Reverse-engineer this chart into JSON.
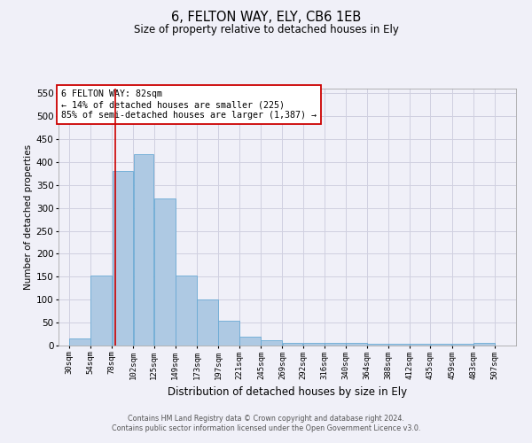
{
  "title": "6, FELTON WAY, ELY, CB6 1EB",
  "subtitle": "Size of property relative to detached houses in Ely",
  "xlabel": "Distribution of detached houses by size in Ely",
  "ylabel": "Number of detached properties",
  "footer_line1": "Contains HM Land Registry data © Crown copyright and database right 2024.",
  "footer_line2": "Contains public sector information licensed under the Open Government Licence v3.0.",
  "annotation_line1": "6 FELTON WAY: 82sqm",
  "annotation_line2": "← 14% of detached houses are smaller (225)",
  "annotation_line3": "85% of semi-detached houses are larger (1,387) →",
  "property_size": 82,
  "bar_left_edges": [
    30,
    54,
    78,
    102,
    125,
    149,
    173,
    197,
    221,
    245,
    269,
    292,
    316,
    340,
    364,
    388,
    412,
    435,
    459,
    483
  ],
  "bar_widths": [
    24,
    24,
    24,
    23,
    24,
    24,
    24,
    24,
    24,
    24,
    23,
    24,
    24,
    24,
    24,
    24,
    23,
    24,
    24,
    24
  ],
  "bar_heights": [
    15,
    152,
    381,
    418,
    320,
    152,
    101,
    55,
    20,
    12,
    5,
    5,
    5,
    5,
    3,
    3,
    3,
    3,
    3,
    5
  ],
  "bar_color": "#aec9e3",
  "bar_edge_color": "#6aaad4",
  "vline_x": 82,
  "vline_color": "#cc0000",
  "ylim": [
    0,
    560
  ],
  "yticks": [
    0,
    50,
    100,
    150,
    200,
    250,
    300,
    350,
    400,
    450,
    500,
    550
  ],
  "xtick_labels": [
    "30sqm",
    "54sqm",
    "78sqm",
    "102sqm",
    "125sqm",
    "149sqm",
    "173sqm",
    "197sqm",
    "221sqm",
    "245sqm",
    "269sqm",
    "292sqm",
    "316sqm",
    "340sqm",
    "364sqm",
    "388sqm",
    "412sqm",
    "435sqm",
    "459sqm",
    "483sqm",
    "507sqm"
  ],
  "background_color": "#f0f0f8",
  "grid_color": "#d0d0e0",
  "annotation_box_facecolor": "#ffffff",
  "annotation_border_color": "#cc0000"
}
